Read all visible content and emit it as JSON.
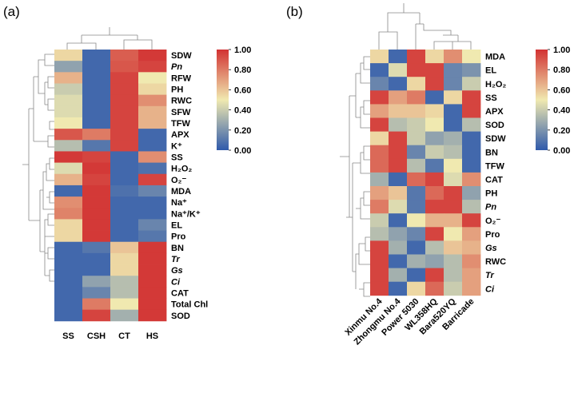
{
  "chart_data": [
    {
      "type": "heatmap",
      "panel_label": "(a)",
      "columns": [
        "SS",
        "CSH",
        "CT",
        "HS"
      ],
      "rows": [
        {
          "label": "SDW",
          "italic": false,
          "values": [
            0.55,
            0.05,
            0.88,
            0.98
          ]
        },
        {
          "label": "Pn",
          "italic": true,
          "values": [
            0.25,
            0.05,
            0.9,
            0.95
          ]
        },
        {
          "label": "RFW",
          "italic": false,
          "values": [
            0.65,
            0.05,
            0.95,
            0.5
          ]
        },
        {
          "label": "PH",
          "italic": false,
          "values": [
            0.4,
            0.05,
            0.95,
            0.55
          ]
        },
        {
          "label": "RWC",
          "italic": false,
          "values": [
            0.45,
            0.05,
            0.95,
            0.75
          ]
        },
        {
          "label": "SFW",
          "italic": false,
          "values": [
            0.45,
            0.05,
            0.95,
            0.65
          ]
        },
        {
          "label": "TFW",
          "italic": false,
          "values": [
            0.5,
            0.05,
            0.95,
            0.65
          ]
        },
        {
          "label": "APX",
          "italic": false,
          "values": [
            0.9,
            0.8,
            0.95,
            0.05
          ]
        },
        {
          "label": "K⁺",
          "italic": false,
          "values": [
            0.35,
            0.1,
            0.95,
            0.05
          ]
        },
        {
          "label": "SS",
          "italic": false,
          "values": [
            0.98,
            0.95,
            0.05,
            0.75
          ]
        },
        {
          "label": "H₂O₂",
          "italic": false,
          "values": [
            0.45,
            0.98,
            0.05,
            0.08
          ]
        },
        {
          "label": "O₂⁻",
          "italic": false,
          "values": [
            0.65,
            0.95,
            0.05,
            0.95
          ]
        },
        {
          "label": "MDA",
          "italic": false,
          "values": [
            0.05,
            0.98,
            0.08,
            0.15
          ]
        },
        {
          "label": "Na⁺",
          "italic": false,
          "values": [
            0.75,
            0.98,
            0.05,
            0.05
          ]
        },
        {
          "label": "Na⁺/K⁺",
          "italic": false,
          "values": [
            0.78,
            0.98,
            0.05,
            0.05
          ]
        },
        {
          "label": "EL",
          "italic": false,
          "values": [
            0.55,
            0.98,
            0.05,
            0.15
          ]
        },
        {
          "label": "Pro",
          "italic": false,
          "values": [
            0.55,
            0.98,
            0.05,
            0.1
          ]
        },
        {
          "label": "BN",
          "italic": false,
          "values": [
            0.05,
            0.1,
            0.6,
            0.98
          ]
        },
        {
          "label": "Tr",
          "italic": true,
          "values": [
            0.05,
            0.05,
            0.55,
            0.98
          ]
        },
        {
          "label": "Gs",
          "italic": true,
          "values": [
            0.05,
            0.05,
            0.55,
            0.98
          ]
        },
        {
          "label": "Ci",
          "italic": true,
          "values": [
            0.05,
            0.25,
            0.35,
            0.98
          ]
        },
        {
          "label": "CAT",
          "italic": false,
          "values": [
            0.05,
            0.15,
            0.35,
            0.98
          ]
        },
        {
          "label": "Total Chl",
          "italic": false,
          "values": [
            0.05,
            0.8,
            0.5,
            0.98
          ]
        },
        {
          "label": "SOD",
          "italic": false,
          "values": [
            0.05,
            0.95,
            0.3,
            0.98
          ]
        }
      ],
      "colorbar": {
        "min": 0.0,
        "max": 1.0,
        "ticks": [
          "1.00",
          "0.80",
          "0.60",
          "0.40",
          "0.20",
          "0.00"
        ],
        "colors": [
          "#2f5aab",
          "#f0e9b0",
          "#d23232"
        ]
      }
    },
    {
      "type": "heatmap",
      "panel_label": "(b)",
      "columns": [
        "Xinmu No.4",
        "Zhongmu No.4",
        "Power 5030",
        "WL358HQ",
        "Bara520YQ",
        "Barricade"
      ],
      "rows": [
        {
          "label": "MDA",
          "italic": false,
          "values": [
            0.55,
            0.05,
            0.95,
            0.55,
            0.75,
            0.5
          ]
        },
        {
          "label": "EL",
          "italic": false,
          "values": [
            0.05,
            0.45,
            0.95,
            0.95,
            0.15,
            0.2
          ]
        },
        {
          "label": "H₂O₂",
          "italic": false,
          "values": [
            0.15,
            0.05,
            0.55,
            0.95,
            0.15,
            0.4
          ]
        },
        {
          "label": "SS",
          "italic": false,
          "values": [
            0.95,
            0.7,
            0.8,
            0.05,
            0.55,
            0.95
          ]
        },
        {
          "label": "APX",
          "italic": false,
          "values": [
            0.7,
            0.6,
            0.6,
            0.55,
            0.05,
            0.95
          ]
        },
        {
          "label": "SOD",
          "italic": false,
          "values": [
            0.95,
            0.35,
            0.4,
            0.5,
            0.05,
            0.35
          ]
        },
        {
          "label": "SDW",
          "italic": false,
          "values": [
            0.55,
            0.95,
            0.4,
            0.25,
            0.3,
            0.05
          ]
        },
        {
          "label": "BN",
          "italic": false,
          "values": [
            0.85,
            0.95,
            0.15,
            0.4,
            0.35,
            0.05
          ]
        },
        {
          "label": "TFW",
          "italic": false,
          "values": [
            0.85,
            0.95,
            0.35,
            0.1,
            0.5,
            0.05
          ]
        },
        {
          "label": "CAT",
          "italic": false,
          "values": [
            0.3,
            0.05,
            0.85,
            0.95,
            0.45,
            0.75
          ]
        },
        {
          "label": "PH",
          "italic": false,
          "values": [
            0.7,
            0.6,
            0.1,
            0.85,
            0.95,
            0.25
          ]
        },
        {
          "label": "Pn",
          "italic": true,
          "values": [
            0.8,
            0.45,
            0.1,
            0.95,
            0.95,
            0.35
          ]
        },
        {
          "label": "O₂⁻",
          "italic": false,
          "values": [
            0.4,
            0.05,
            0.5,
            0.65,
            0.65,
            0.95
          ]
        },
        {
          "label": "Pro",
          "italic": false,
          "values": [
            0.35,
            0.25,
            0.15,
            0.95,
            0.5,
            0.7
          ]
        },
        {
          "label": "Gs",
          "italic": true,
          "values": [
            0.95,
            0.3,
            0.05,
            0.35,
            0.6,
            0.65
          ]
        },
        {
          "label": "RWC",
          "italic": false,
          "values": [
            0.95,
            0.05,
            0.3,
            0.25,
            0.35,
            0.75
          ]
        },
        {
          "label": "Tr",
          "italic": true,
          "values": [
            0.95,
            0.3,
            0.05,
            0.95,
            0.35,
            0.7
          ]
        },
        {
          "label": "Ci",
          "italic": true,
          "values": [
            0.95,
            0.05,
            0.55,
            0.85,
            0.4,
            0.7
          ]
        }
      ],
      "colorbar": {
        "min": 0.0,
        "max": 1.0,
        "ticks": [
          "1.00",
          "0.80",
          "0.60",
          "0.40",
          "0.20",
          "0.00"
        ],
        "colors": [
          "#2f5aab",
          "#f0e9b0",
          "#d23232"
        ]
      }
    }
  ]
}
